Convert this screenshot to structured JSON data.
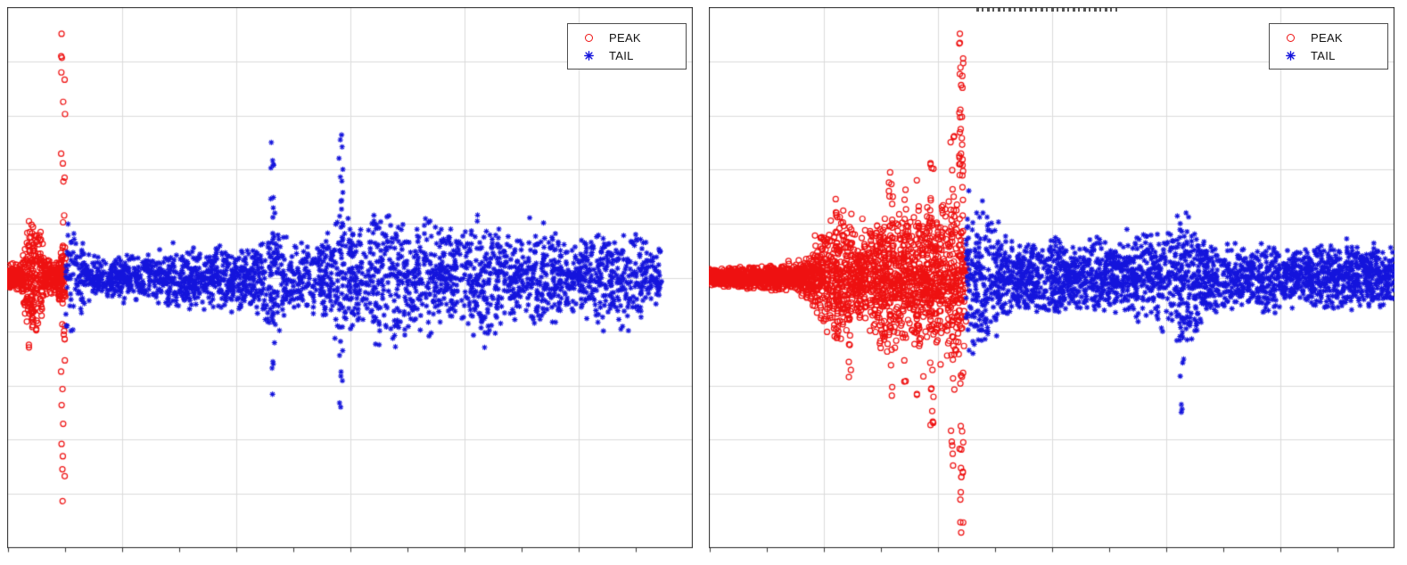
{
  "figure": {
    "background": "#FFFFFF",
    "axis_color": "#222222",
    "grid_color": "#DBDBDB",
    "tick_color": "#333333"
  },
  "chart_data": [
    {
      "type": "scatter",
      "title": "",
      "xlabel": "",
      "ylabel": "",
      "xlim": [
        0,
        1
      ],
      "ylim": [
        -1,
        1
      ],
      "tick_labels_visible": false,
      "grid": {
        "v_divisions": 6,
        "h_divisions": 10,
        "tick_divisions": 12,
        "grid_on": true
      },
      "legend": {
        "position": "northeast",
        "entries": [
          {
            "label": "PEAK",
            "marker": "circle",
            "color": "#EE1111"
          },
          {
            "label": "TAIL",
            "marker": "asterisk",
            "color": "#1414DC"
          }
        ]
      },
      "seed": 11,
      "series": [
        {
          "name": "PEAK",
          "marker": "circle",
          "color": "#EE1111",
          "n": 520,
          "x_range": [
            0.0,
            0.085
          ],
          "envelope": [
            [
              0.0,
              0.05
            ],
            [
              0.02,
              0.06
            ],
            [
              0.028,
              0.2
            ],
            [
              0.045,
              0.24
            ],
            [
              0.055,
              0.1
            ],
            [
              0.07,
              0.06
            ],
            [
              0.085,
              0.15
            ]
          ],
          "columns": [
            {
              "x": 0.034,
              "ymin": -0.27,
              "ymax": 0.27,
              "count": 20
            },
            {
              "x": 0.081,
              "ymin": -0.88,
              "ymax": 0.93,
              "count": 34
            }
          ]
        },
        {
          "name": "TAIL",
          "marker": "asterisk",
          "color": "#1414DC",
          "n": 2600,
          "x_range": [
            0.085,
            0.955
          ],
          "envelope": [
            [
              0.085,
              0.26
            ],
            [
              0.1,
              0.24
            ],
            [
              0.115,
              0.1
            ],
            [
              0.14,
              0.08
            ],
            [
              0.17,
              0.08
            ],
            [
              0.2,
              0.1
            ],
            [
              0.23,
              0.12
            ],
            [
              0.26,
              0.13
            ],
            [
              0.29,
              0.12
            ],
            [
              0.32,
              0.14
            ],
            [
              0.35,
              0.13
            ],
            [
              0.375,
              0.18
            ],
            [
              0.39,
              0.26
            ],
            [
              0.41,
              0.16
            ],
            [
              0.44,
              0.14
            ],
            [
              0.46,
              0.18
            ],
            [
              0.485,
              0.28
            ],
            [
              0.5,
              0.24
            ],
            [
              0.52,
              0.2
            ],
            [
              0.545,
              0.3
            ],
            [
              0.565,
              0.33
            ],
            [
              0.585,
              0.22
            ],
            [
              0.61,
              0.28
            ],
            [
              0.63,
              0.22
            ],
            [
              0.655,
              0.18
            ],
            [
              0.68,
              0.25
            ],
            [
              0.7,
              0.28
            ],
            [
              0.72,
              0.2
            ],
            [
              0.745,
              0.16
            ],
            [
              0.77,
              0.24
            ],
            [
              0.79,
              0.2
            ],
            [
              0.815,
              0.14
            ],
            [
              0.84,
              0.17
            ],
            [
              0.86,
              0.22
            ],
            [
              0.88,
              0.17
            ],
            [
              0.9,
              0.24
            ],
            [
              0.92,
              0.2
            ],
            [
              0.94,
              0.16
            ],
            [
              0.955,
              0.13
            ]
          ],
          "columns": [
            {
              "x": 0.387,
              "ymin": -0.45,
              "ymax": 0.53,
              "count": 26
            },
            {
              "x": 0.487,
              "ymin": -0.5,
              "ymax": 0.55,
              "count": 30
            }
          ]
        }
      ]
    },
    {
      "type": "scatter",
      "title": "",
      "xlabel": "",
      "ylabel": "",
      "xlim": [
        0,
        1
      ],
      "ylim": [
        -1,
        1
      ],
      "tick_labels_visible": false,
      "grid": {
        "v_divisions": 6,
        "h_divisions": 10,
        "tick_divisions": 12,
        "grid_on": true
      },
      "legend": {
        "position": "northeast",
        "entries": [
          {
            "label": "PEAK",
            "marker": "circle",
            "color": "#EE1111"
          },
          {
            "label": "TAIL",
            "marker": "asterisk",
            "color": "#1414DC"
          }
        ]
      },
      "seed": 29,
      "series": [
        {
          "name": "PEAK",
          "marker": "circle",
          "color": "#EE1111",
          "n": 2300,
          "x_range": [
            0.0,
            0.375
          ],
          "envelope": [
            [
              0.0,
              0.035
            ],
            [
              0.04,
              0.04
            ],
            [
              0.08,
              0.05
            ],
            [
              0.12,
              0.055
            ],
            [
              0.15,
              0.1
            ],
            [
              0.17,
              0.22
            ],
            [
              0.19,
              0.28
            ],
            [
              0.21,
              0.18
            ],
            [
              0.23,
              0.2
            ],
            [
              0.25,
              0.3
            ],
            [
              0.27,
              0.28
            ],
            [
              0.29,
              0.26
            ],
            [
              0.31,
              0.3
            ],
            [
              0.33,
              0.28
            ],
            [
              0.35,
              0.32
            ],
            [
              0.365,
              0.36
            ],
            [
              0.375,
              0.3
            ]
          ],
          "columns": [
            {
              "x": 0.185,
              "ymin": -0.3,
              "ymax": 0.3,
              "count": 18
            },
            {
              "x": 0.205,
              "ymin": -0.38,
              "ymax": 0.25,
              "count": 16
            },
            {
              "x": 0.265,
              "ymin": -0.5,
              "ymax": 0.45,
              "count": 22
            },
            {
              "x": 0.285,
              "ymin": -0.55,
              "ymax": 0.35,
              "count": 18
            },
            {
              "x": 0.305,
              "ymin": -0.45,
              "ymax": 0.4,
              "count": 18
            },
            {
              "x": 0.325,
              "ymin": -0.6,
              "ymax": 0.45,
              "count": 20
            },
            {
              "x": 0.355,
              "ymin": -0.75,
              "ymax": 0.55,
              "count": 24
            },
            {
              "x": 0.368,
              "ymin": -0.97,
              "ymax": 0.96,
              "count": 60
            }
          ]
        },
        {
          "name": "TAIL",
          "marker": "asterisk",
          "color": "#1414DC",
          "n": 2400,
          "x_range": [
            0.375,
            1.0
          ],
          "envelope": [
            [
              0.375,
              0.36
            ],
            [
              0.39,
              0.3
            ],
            [
              0.41,
              0.26
            ],
            [
              0.43,
              0.2
            ],
            [
              0.455,
              0.14
            ],
            [
              0.48,
              0.14
            ],
            [
              0.5,
              0.17
            ],
            [
              0.52,
              0.15
            ],
            [
              0.545,
              0.13
            ],
            [
              0.57,
              0.16
            ],
            [
              0.59,
              0.14
            ],
            [
              0.61,
              0.15
            ],
            [
              0.63,
              0.22
            ],
            [
              0.65,
              0.2
            ],
            [
              0.67,
              0.24
            ],
            [
              0.69,
              0.28
            ],
            [
              0.71,
              0.24
            ],
            [
              0.73,
              0.16
            ],
            [
              0.755,
              0.14
            ],
            [
              0.78,
              0.13
            ],
            [
              0.8,
              0.13
            ],
            [
              0.82,
              0.15
            ],
            [
              0.845,
              0.12
            ],
            [
              0.87,
              0.12
            ],
            [
              0.89,
              0.14
            ],
            [
              0.91,
              0.12
            ],
            [
              0.93,
              0.14
            ],
            [
              0.95,
              0.12
            ],
            [
              0.97,
              0.13
            ],
            [
              0.985,
              0.11
            ],
            [
              1.0,
              0.12
            ]
          ],
          "columns": [
            {
              "x": 0.69,
              "ymin": -0.52,
              "ymax": -0.15,
              "count": 12
            }
          ]
        }
      ]
    }
  ]
}
